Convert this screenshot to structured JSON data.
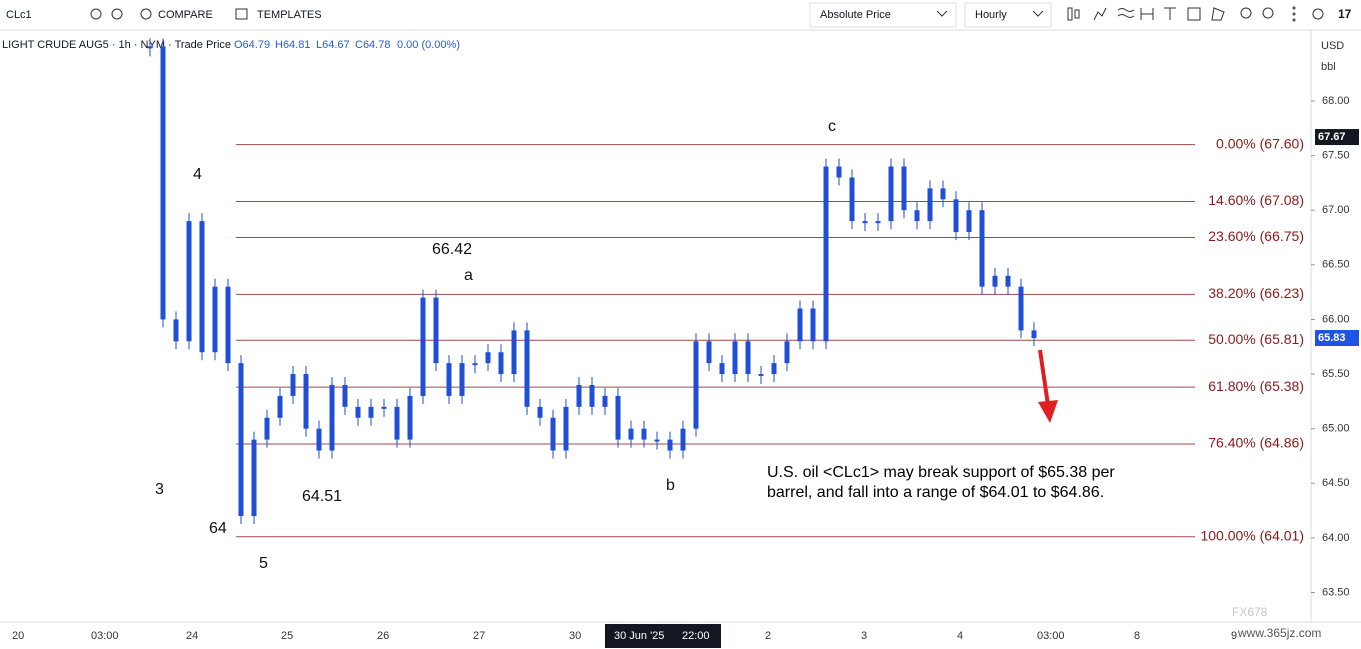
{
  "toolbar": {
    "symbol": "CLc1",
    "compare": "COMPARE",
    "templates": "TEMPLATES",
    "price_mode": "Absolute Price",
    "interval": "Hourly"
  },
  "legend": {
    "title": "LIGHT CRUDE AUG5 · 1h · NYM · Trade Price",
    "open": "O64.79",
    "high": "H64.81",
    "low": "L64.67",
    "close": "C64.78",
    "change": "0.00 (0.00%)"
  },
  "axis_settings": {
    "currency": "USD",
    "unit": "bbl"
  },
  "x_axis_labels": [
    "20",
    "03:00",
    "24",
    "25",
    "26",
    "27",
    "30",
    "30 Jun '25",
    "22:00",
    "2",
    "3",
    "4",
    "03:00",
    "8",
    "9"
  ],
  "annotations": {
    "wave_c": "c",
    "wave_4": "4",
    "high_label": "66.42",
    "wave_a": "a",
    "wave_3": "3",
    "low_label": "64.51",
    "wave_b": "b",
    "wave_64": "64",
    "wave_5": "5"
  },
  "note": [
    "U.S. oil <CLc1> may break support of $65.38 per",
    "barrel, and fall into a range of $64.01 to $64.86."
  ],
  "watermark": {
    "brand": "FX678",
    "site": "www.365jz.com"
  },
  "chart_data": {
    "type": "candlestick",
    "color": "#1f4fd6",
    "values": [
      68.5,
      66.0,
      65.8,
      66.9,
      65.7,
      66.3,
      65.6,
      64.2,
      64.9,
      65.1,
      65.3,
      65.5,
      65.0,
      64.8,
      65.4,
      65.2,
      65.1,
      65.2,
      65.2,
      64.9,
      65.3,
      66.2,
      65.6,
      65.3,
      65.6,
      65.6,
      65.7,
      65.5,
      65.9,
      65.2,
      65.1,
      64.8,
      65.2,
      65.4,
      65.2,
      65.3,
      64.9,
      65.0,
      64.9,
      64.9,
      64.8,
      65.0,
      65.8,
      65.6,
      65.5,
      65.8,
      65.5,
      65.5,
      65.6,
      65.8,
      66.1,
      65.8,
      67.4,
      67.3,
      66.9,
      66.9,
      66.9,
      67.4,
      67.0,
      66.9,
      67.2,
      67.1,
      66.8,
      67.0,
      66.3,
      66.4,
      66.3,
      65.9,
      65.83
    ],
    "ylim": [
      63.23,
      68.65
    ],
    "yticks": [
      {
        "value": 63.5,
        "label": "63.50"
      },
      {
        "value": 64,
        "label": "64.00"
      },
      {
        "value": 64.5,
        "label": "64.50"
      },
      {
        "value": 65,
        "label": "65.00"
      },
      {
        "value": 65.5,
        "label": "65.50"
      },
      {
        "value": 66,
        "label": "66.00"
      },
      {
        "value": 66.5,
        "label": "66.50"
      },
      {
        "value": 67,
        "label": "67.00"
      },
      {
        "value": 67.5,
        "label": "67.50"
      },
      {
        "value": 68,
        "label": "68.00"
      }
    ],
    "fib_color": "#a04848",
    "fib_levels": [
      {
        "value": 67.6,
        "label": "0.00% (67.60)"
      },
      {
        "value": 67.08,
        "label": "14.60% (67.08)"
      },
      {
        "value": 66.75,
        "label": "23.60% (66.75)"
      },
      {
        "value": 66.23,
        "label": "38.20% (66.23)"
      },
      {
        "value": 65.81,
        "label": "50.00% (65.81)"
      },
      {
        "value": 65.38,
        "label": "61.80% (65.38)"
      },
      {
        "value": 64.86,
        "label": "76.40% (64.86)"
      },
      {
        "value": 64.01,
        "label": "100.00% (64.01)"
      }
    ],
    "price_labels": [
      67.67,
      65.83
    ],
    "price_label_colors": [
      "#131722",
      "#1e53e5"
    ]
  }
}
